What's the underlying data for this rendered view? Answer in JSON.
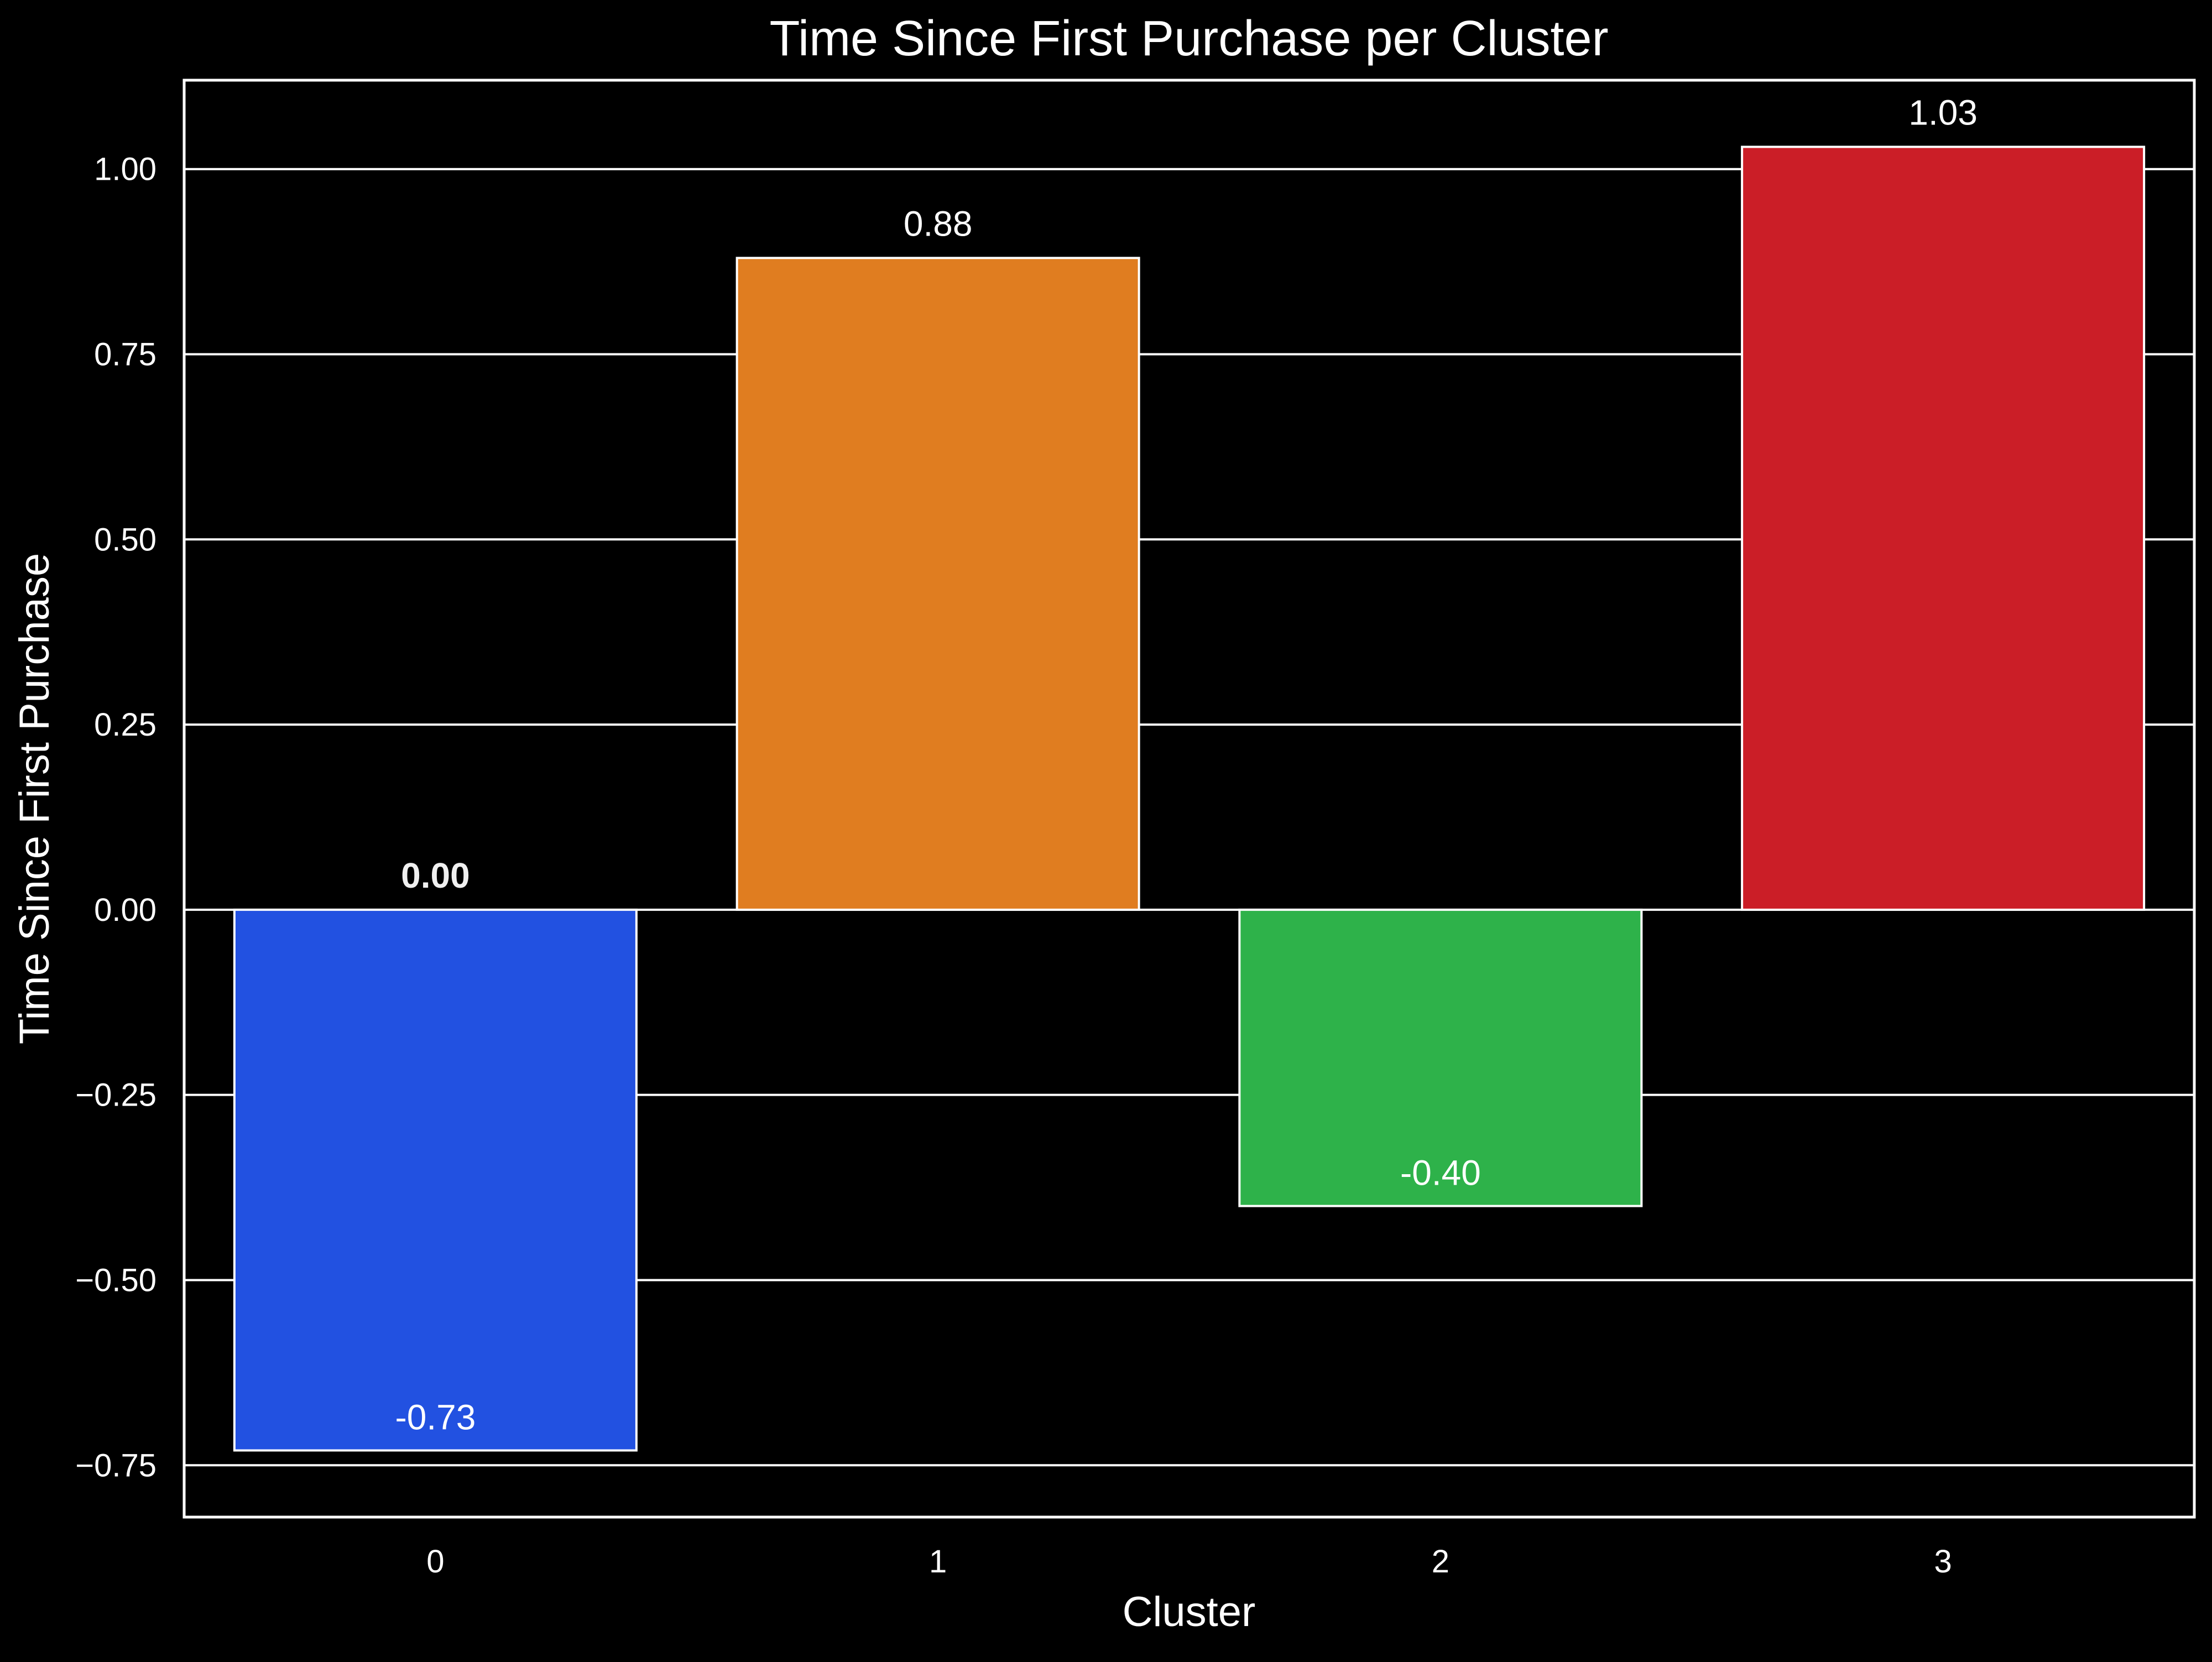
{
  "chart_data": {
    "type": "bar",
    "title": "Time Since First Purchase per Cluster",
    "xlabel": "Cluster",
    "ylabel": "Time Since First Purchase",
    "categories": [
      "0",
      "1",
      "2",
      "3"
    ],
    "values": [
      -0.73,
      0.88,
      -0.4,
      1.03
    ],
    "bar_labels": [
      "-0.73",
      "0.88",
      "-0.40",
      "1.03"
    ],
    "extra_annotation": "0.00",
    "bar_colors": [
      "#2251E1",
      "#E07D20",
      "#2EB24A",
      "#CB1E27"
    ],
    "yticks": [
      -0.75,
      -0.5,
      -0.25,
      0.0,
      0.25,
      0.5,
      0.75,
      1.0
    ],
    "ytick_labels": [
      "−0.75",
      "−0.50",
      "−0.25",
      "0.00",
      "0.25",
      "0.50",
      "0.75",
      "1.00"
    ],
    "ylim": [
      -0.82,
      1.12
    ],
    "grid": true,
    "background": "#000000",
    "foreground": "#ffffff"
  }
}
